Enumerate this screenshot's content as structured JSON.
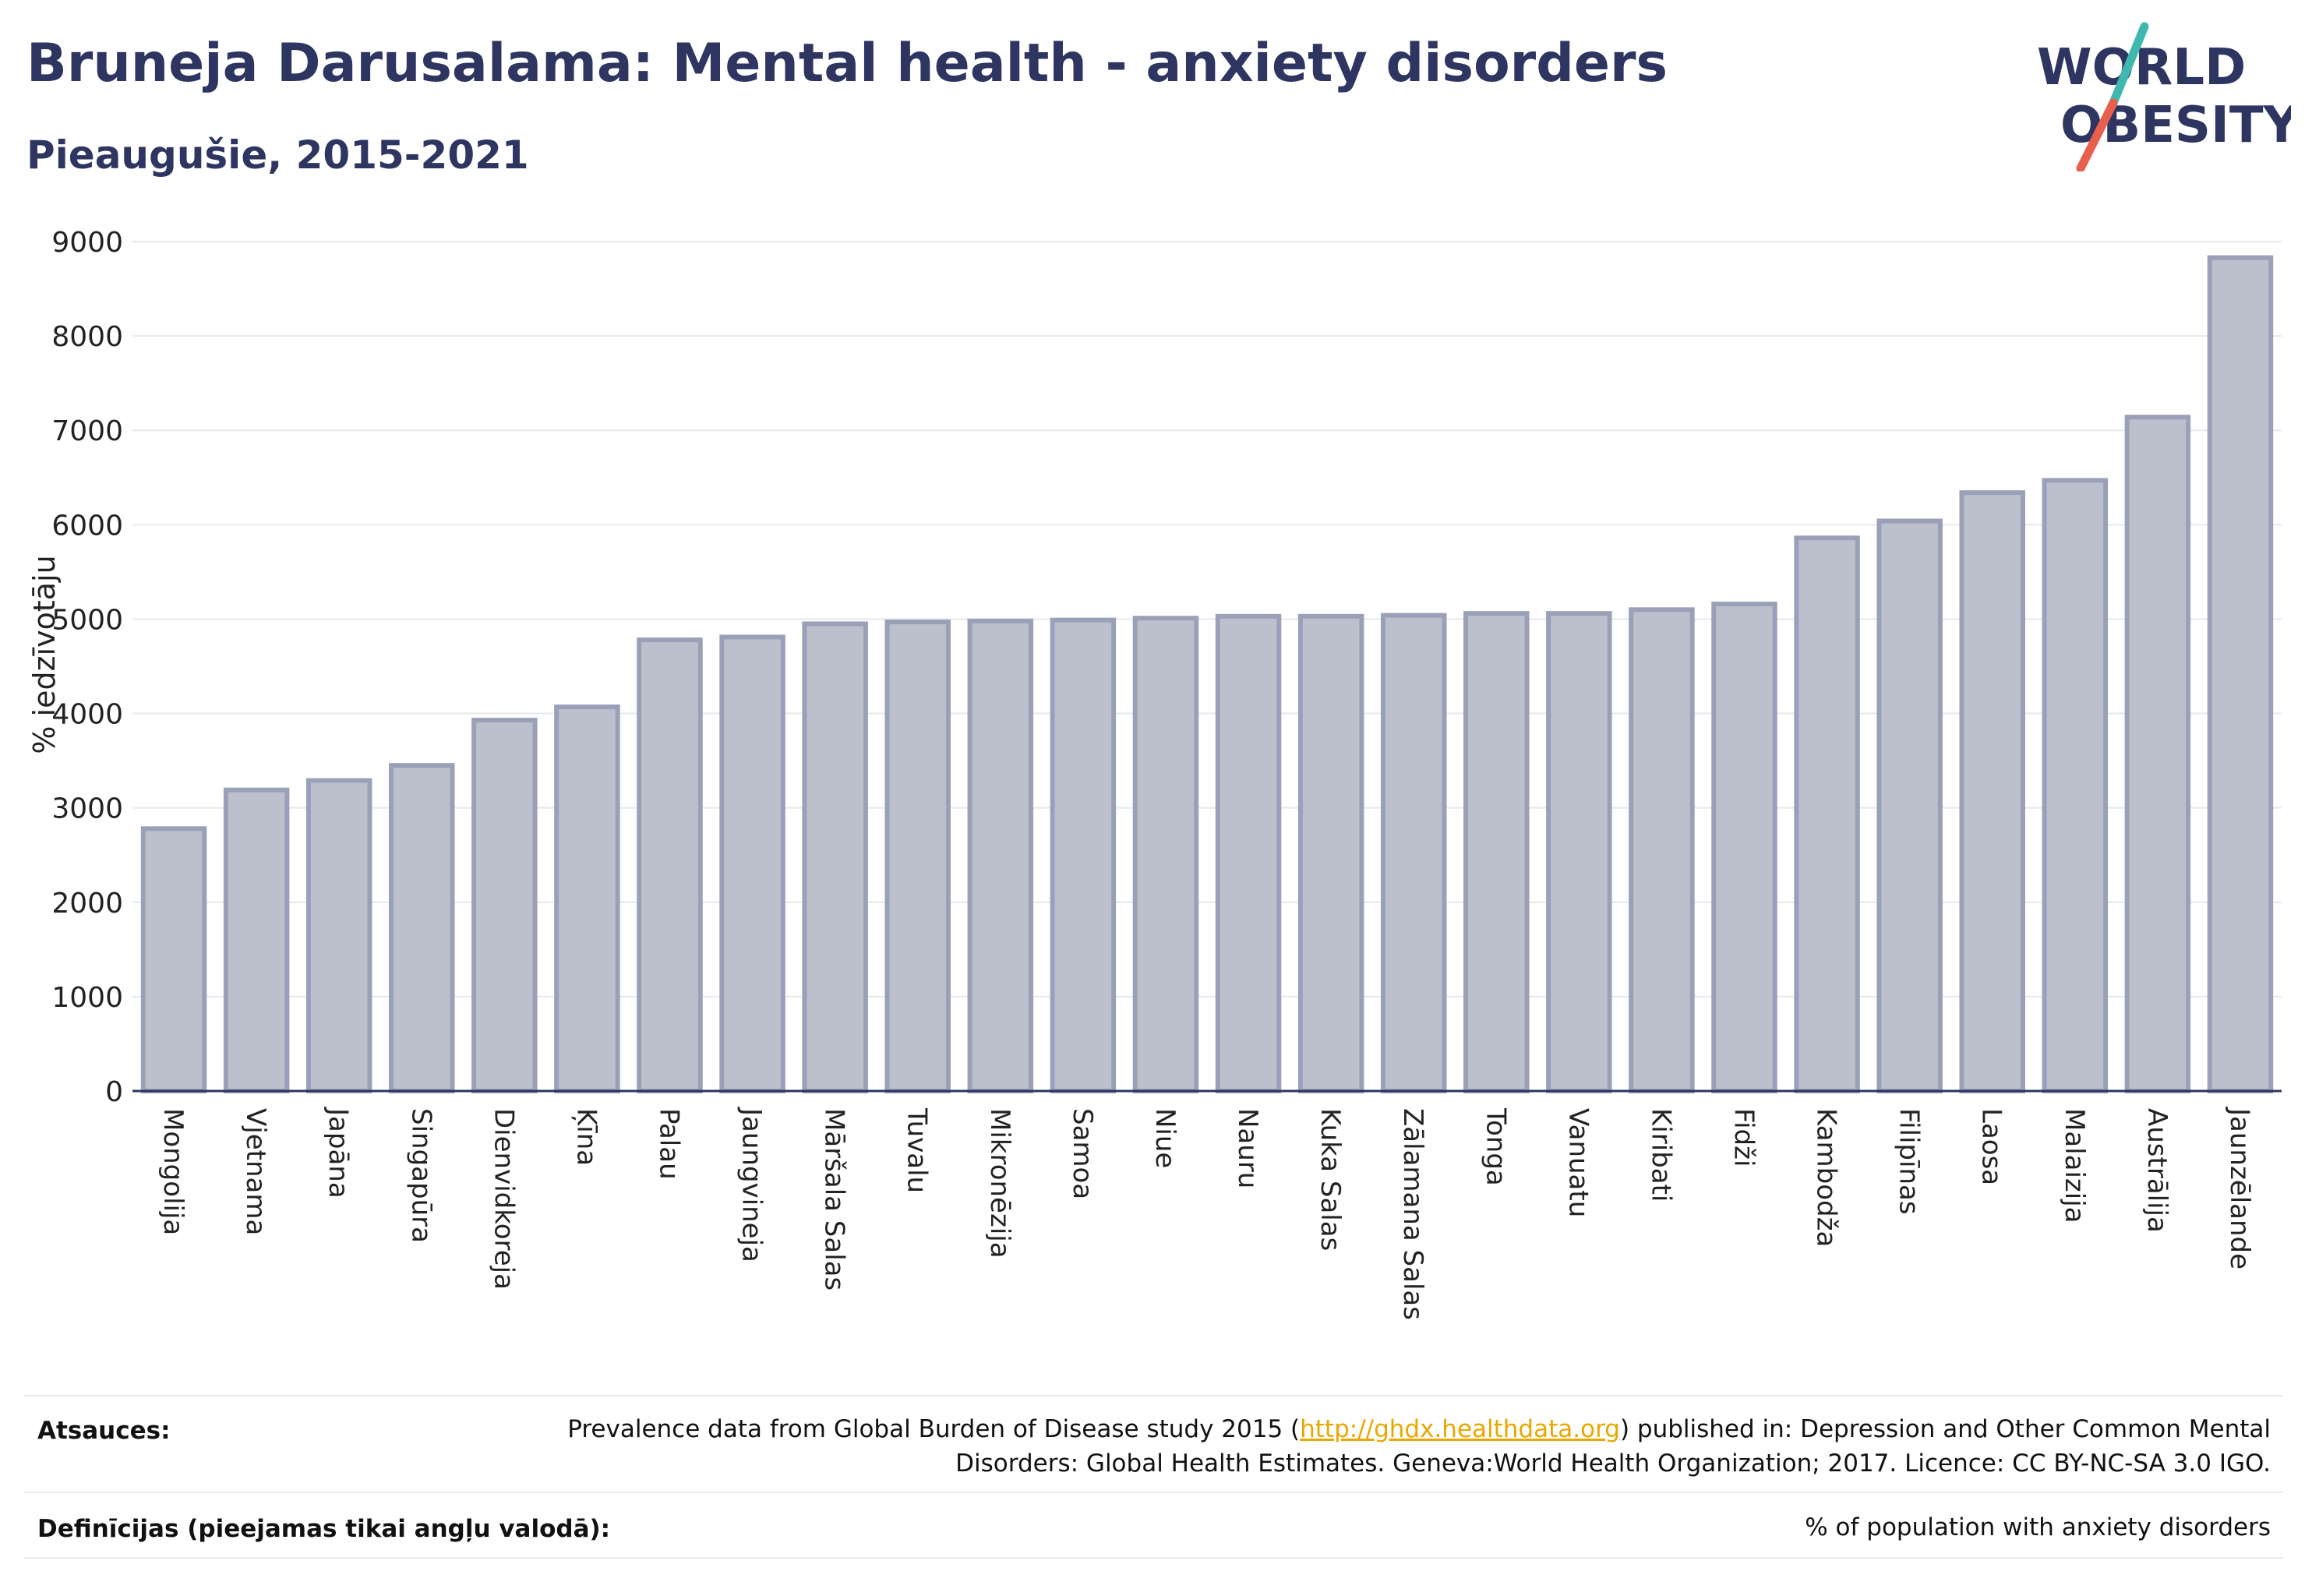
{
  "header": {
    "title": "Bruneja Darusalama: Mental health - anxiety disorders",
    "subtitle": "Pieaugušie, 2015-2021"
  },
  "logo": {
    "line1": "WORLD",
    "line2": "OBESITY",
    "colors": {
      "text": "#2d3560",
      "slash_top": "#3fb8b0",
      "slash_bottom": "#e8604c"
    }
  },
  "chart_data": {
    "type": "bar",
    "title": "Bruneja Darusalama: Mental health - anxiety disorders",
    "subtitle": "Pieaugušie, 2015-2021",
    "ylabel": "% iedzīvotāju",
    "xlabel": "",
    "ylim": [
      0,
      9000
    ],
    "yticks": [
      0,
      1000,
      2000,
      3000,
      4000,
      5000,
      6000,
      7000,
      8000,
      9000
    ],
    "grid": true,
    "legend": "none",
    "colors": {
      "bar_fill": "#bcc0cd",
      "bar_stroke": "#9aa0b8",
      "axis": "#2d3560"
    },
    "categories": [
      "Mongolija",
      "Vjetnama",
      "Japāna",
      "Singapūra",
      "Dienvidkoreja",
      "Ķīna",
      "Palau",
      "Jaungvineja",
      "Māršala Salas",
      "Tuvalu",
      "Mikronēzija",
      "Samoa",
      "Niue",
      "Nauru",
      "Kuka Salas",
      "Zālamana Salas",
      "Tonga",
      "Vanuatu",
      "Kiribati",
      "Fidži",
      "Kambodža",
      "Filipīnas",
      "Laosa",
      "Malaizija",
      "Austrālija",
      "Jaunzēlande"
    ],
    "values": [
      2780,
      3190,
      3290,
      3450,
      3930,
      4070,
      4780,
      4810,
      4950,
      4970,
      4980,
      4990,
      5010,
      5030,
      5030,
      5040,
      5060,
      5060,
      5100,
      5160,
      5860,
      6040,
      6340,
      6470,
      7140,
      8830
    ]
  },
  "footer": {
    "sources_label": "Atsauces:",
    "sources_text_1": "Prevalence data from Global Burden of Disease study 2015 (",
    "sources_link": "http://ghdx.healthdata.org",
    "sources_text_2": ") published in: Depression and Other Common Mental Disorders: Global Health Estimates. Geneva:World Health Organization; 2017. Licence: CC BY-NC-SA 3.0 IGO.",
    "definitions_label": "Definīcijas (pieejamas tikai angļu valodā):",
    "definitions_text": "% of population with anxiety disorders"
  }
}
